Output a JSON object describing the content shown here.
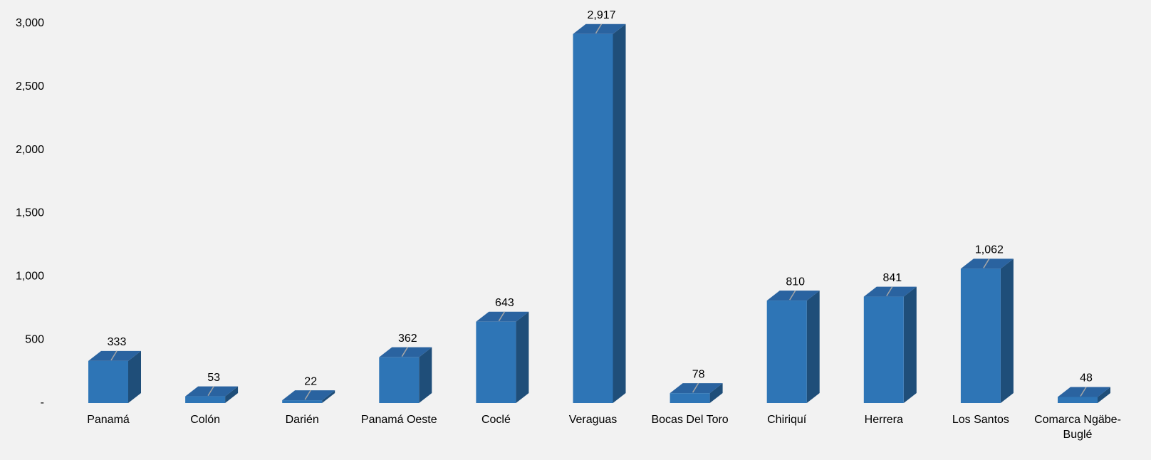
{
  "chart_data": {
    "type": "bar",
    "categories": [
      "Panamá",
      "Colón",
      "Darién",
      "Panamá Oeste",
      "Coclé",
      "Veraguas",
      "Bocas Del Toro",
      "Chiriquí",
      "Herrera",
      "Los Santos",
      "Comarca Ngäbe-Buglé"
    ],
    "values": [
      333,
      53,
      22,
      362,
      643,
      2917,
      78,
      810,
      841,
      1062,
      48
    ],
    "value_labels": [
      "333",
      "53",
      "22",
      "362",
      "643",
      "2,917",
      "78",
      "810",
      "841",
      "1,062",
      "48"
    ],
    "color": "#2e75b6",
    "ylim": [
      0,
      3000
    ],
    "yticks": [
      {
        "value": 0,
        "label": "-"
      },
      500,
      {
        "value": 1000,
        "label": "1,000"
      },
      {
        "value": 1500,
        "label": "1,500"
      },
      {
        "value": 2000,
        "label": "2,000"
      },
      {
        "value": 2500,
        "label": "2,500"
      },
      {
        "value": 3000,
        "label": "3,000"
      }
    ],
    "grid": false
  }
}
